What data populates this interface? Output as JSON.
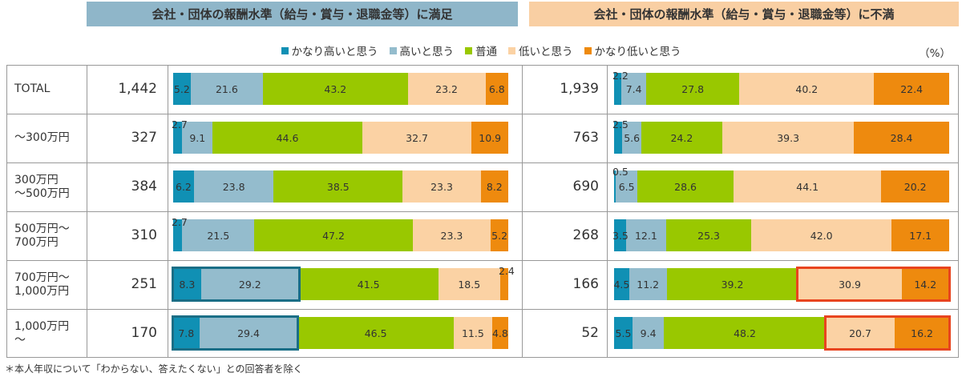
{
  "headers": {
    "satisfied": "会社・団体の報酬水準（給与・賞与・退職金等）に満足",
    "dissatisfied": "会社・団体の報酬水準（給与・賞与・退職金等）に不満"
  },
  "unit": "（%）",
  "footnote": "＊本人年収について「わからない、答えたくない」との回答者を除く",
  "colors": [
    "#1090b4",
    "#94bccd",
    "#99c800",
    "#fbd2a4",
    "#ee8a0e"
  ],
  "chart_data": {
    "type": "bar",
    "stacked": true,
    "orientation": "horizontal",
    "legend": [
      "かなり高いと思う",
      "高いと思う",
      "普通",
      "低いと思う",
      "かなり低いと思う"
    ],
    "legend_position": "top",
    "categories": [
      "TOTAL",
      "～300万円",
      "300万円\n～500万円",
      "500万円～\n700万円",
      "700万円～\n1,000万円",
      "1,000万円\n～"
    ],
    "panels": [
      {
        "name": "会社・団体の報酬水準（給与・賞与・退職金等）に満足",
        "n": [
          "1,442",
          "327",
          "384",
          "310",
          "251",
          "170"
        ],
        "rows": [
          [
            5.2,
            21.6,
            43.2,
            23.2,
            6.8
          ],
          [
            2.7,
            9.1,
            44.6,
            32.7,
            10.9
          ],
          [
            6.2,
            23.8,
            38.5,
            23.3,
            8.2
          ],
          [
            2.7,
            21.5,
            47.2,
            23.3,
            5.2
          ],
          [
            8.3,
            29.2,
            41.5,
            18.5,
            2.4
          ],
          [
            7.8,
            29.4,
            46.5,
            11.5,
            4.8
          ]
        ],
        "highlights": [
          {
            "row": 4,
            "from": 0,
            "to": 1,
            "color": "#1a6e86"
          },
          {
            "row": 5,
            "from": 0,
            "to": 1,
            "color": "#1a6e86"
          }
        ]
      },
      {
        "name": "会社・団体の報酬水準（給与・賞与・退職金等）に不満",
        "n": [
          "1,939",
          "763",
          "690",
          "268",
          "166",
          "52"
        ],
        "rows": [
          [
            2.2,
            7.4,
            27.8,
            40.2,
            22.4
          ],
          [
            2.5,
            5.6,
            24.2,
            39.3,
            28.4
          ],
          [
            0.5,
            6.5,
            28.6,
            44.1,
            20.2
          ],
          [
            3.5,
            12.1,
            25.3,
            42.0,
            17.1
          ],
          [
            4.5,
            11.2,
            39.2,
            30.9,
            14.2
          ],
          [
            5.5,
            9.4,
            48.2,
            20.7,
            16.2
          ]
        ],
        "highlights": [
          {
            "row": 4,
            "from": 3,
            "to": 4,
            "color": "#e8441f"
          },
          {
            "row": 5,
            "from": 3,
            "to": 4,
            "color": "#e8441f"
          }
        ]
      }
    ]
  }
}
